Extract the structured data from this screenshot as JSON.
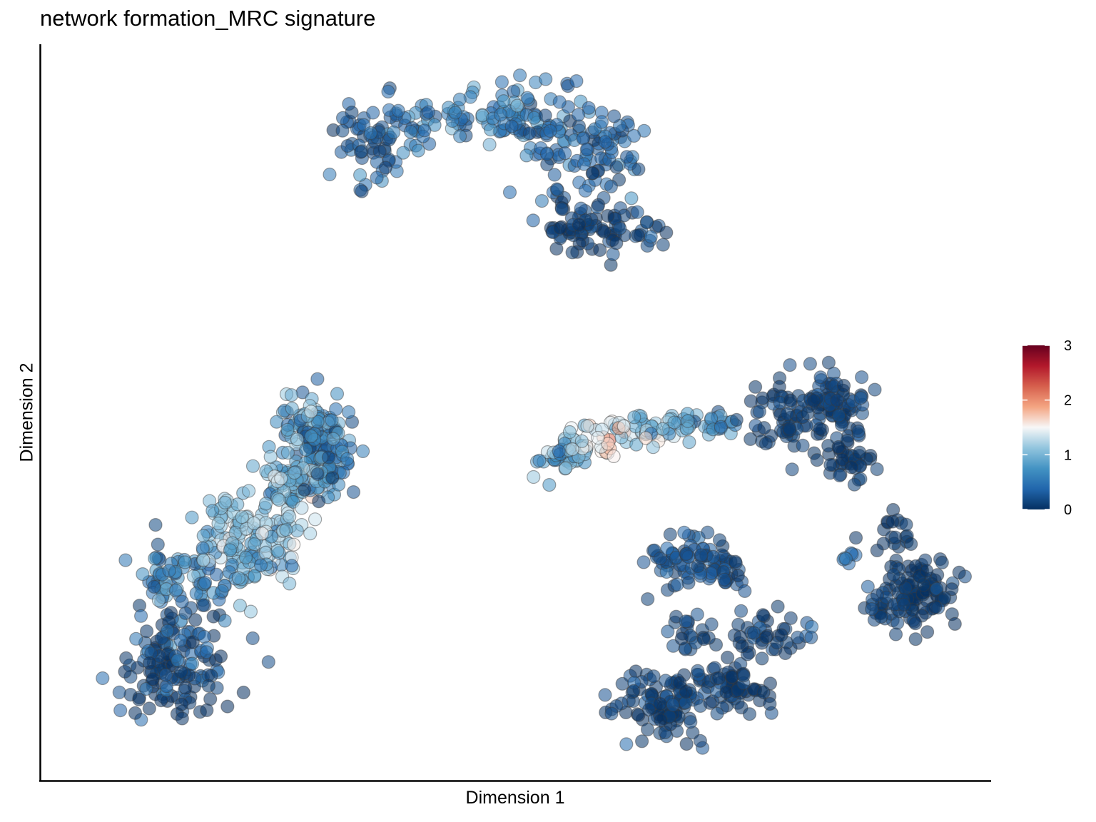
{
  "chart_data": {
    "type": "scatter",
    "title": "network formation_MRC signature",
    "xlabel": "Dimension 1",
    "ylabel": "Dimension 2",
    "xticks_visible": false,
    "yticks_visible": false,
    "grid": false,
    "xlim": [
      0,
      100
    ],
    "ylim": [
      0,
      100
    ],
    "point_alpha": 0.55,
    "point_outline": "#3a3a3a",
    "color_scale": {
      "name": "",
      "min": 0,
      "max": 3,
      "ticks": [
        0,
        1,
        2,
        3
      ],
      "tick_labels": [
        "0",
        "1",
        "2",
        "3"
      ],
      "palette": [
        "#053061",
        "#2166ac",
        "#4393c3",
        "#92c5de",
        "#f7f7f7",
        "#f4a582",
        "#d6604d",
        "#b2182b",
        "#67001f"
      ],
      "position": "right"
    },
    "clusters": [
      {
        "label": "",
        "seed": 11,
        "points": 360,
        "shape": [
          [
            34.9,
            86.7,
            3.2,
            5.2,
            0.35
          ],
          [
            39.6,
            88.5,
            2.7,
            3.5,
            0.5
          ],
          [
            44.5,
            90.6,
            3.2,
            3.3,
            0.6
          ],
          [
            49.7,
            90.9,
            3.0,
            3.8,
            0.55
          ],
          [
            53.9,
            88.4,
            3.5,
            6.5,
            0.4
          ],
          [
            59.5,
            85.9,
            3.2,
            5.8,
            0.3
          ],
          [
            58.3,
            74.7,
            3.0,
            3.6,
            0.05
          ],
          [
            55.2,
            75.6,
            3.0,
            3.0,
            0.0
          ],
          [
            63.0,
            75.4,
            3.0,
            3.0,
            0.1
          ]
        ],
        "value_mean": 0.45,
        "value_spread": 0.35
      },
      {
        "label": "",
        "seed": 23,
        "points": 230,
        "shape": [
          [
            28.5,
            48.2,
            3.2,
            3.4,
            0.75
          ],
          [
            30.0,
            43.3,
            2.5,
            3.6,
            0.5
          ],
          [
            26.1,
            40.5,
            3.0,
            3.0,
            0.9
          ]
        ],
        "value_mean": 0.75,
        "value_spread": 0.45
      },
      {
        "label": "",
        "seed": 37,
        "points": 380,
        "shape": [
          [
            22.5,
            34.8,
            5.0,
            4.5,
            1.15
          ],
          [
            21.4,
            30.8,
            5.2,
            5.0,
            0.95
          ],
          [
            14.2,
            26.7,
            5.0,
            4.7,
            0.6
          ],
          [
            15.0,
            18.0,
            5.6,
            4.5,
            0.2
          ],
          [
            13.5,
            12.0,
            5.2,
            3.8,
            0.05
          ]
        ],
        "value_mean": 0.5,
        "value_spread": 0.45
      },
      {
        "label": "",
        "seed": 53,
        "points": 150,
        "shape": [
          [
            55.0,
            44.5,
            2.8,
            2.8,
            0.85
          ],
          [
            59.3,
            46.9,
            2.8,
            2.4,
            1.55
          ],
          [
            63.3,
            47.5,
            2.6,
            2.1,
            1.05
          ],
          [
            68.0,
            48.3,
            2.2,
            1.6,
            0.75
          ],
          [
            71.3,
            48.3,
            1.6,
            1.4,
            0.55
          ]
        ],
        "value_mean": 1.0,
        "value_spread": 0.45
      },
      {
        "label": "",
        "seed": 71,
        "points": 330,
        "shape": [
          [
            79.0,
            49.0,
            3.4,
            4.5,
            0.1
          ],
          [
            83.5,
            51.5,
            3.2,
            3.5,
            0.1
          ],
          [
            85.2,
            44.0,
            3.2,
            4.0,
            0.05
          ],
          [
            90.3,
            34.0,
            2.0,
            2.2,
            0.05
          ],
          [
            92.6,
            26.0,
            4.0,
            4.5,
            0.05
          ],
          [
            89.5,
            23.0,
            2.5,
            2.5,
            0.1
          ],
          [
            85.5,
            30.3,
            1.5,
            1.3,
            0.4
          ]
        ],
        "value_mean": 0.15,
        "value_spread": 0.15
      },
      {
        "label": "",
        "seed": 89,
        "points": 330,
        "shape": [
          [
            67.5,
            30.0,
            3.5,
            3.5,
            0.25
          ],
          [
            71.8,
            28.5,
            2.5,
            3.0,
            0.15
          ],
          [
            68.1,
            19.5,
            2.2,
            2.5,
            0.15
          ],
          [
            66.0,
            10.0,
            4.5,
            4.2,
            0.1
          ],
          [
            73.0,
            12.5,
            3.0,
            4.0,
            0.05
          ],
          [
            76.5,
            20.0,
            3.0,
            2.5,
            0.05
          ],
          [
            81.0,
            20.0,
            1.5,
            1.0,
            0.3
          ]
        ],
        "value_mean": 0.2,
        "value_spread": 0.2
      }
    ]
  }
}
